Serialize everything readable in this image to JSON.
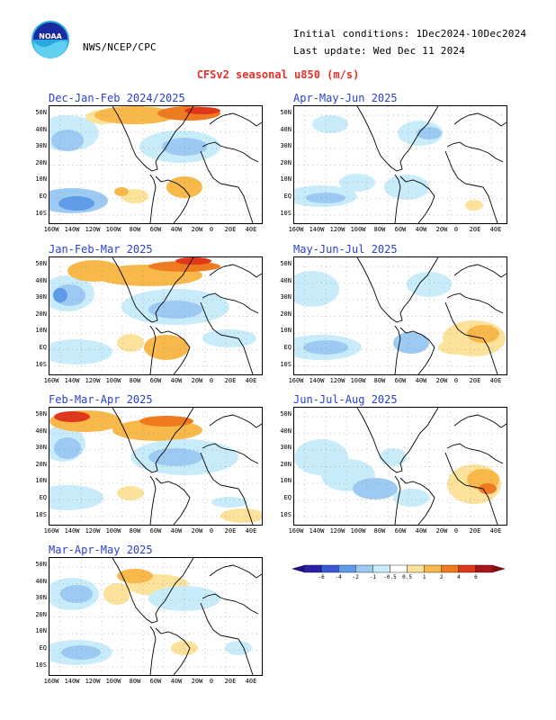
{
  "header": {
    "agency": "NWS/NCEP/CPC",
    "initial_conditions": "Initial conditions: 1Dec2024-10Dec2024",
    "last_update": "Last update: Wed Dec 11 2024",
    "title": "CFSv2 seasonal u850 (m/s)",
    "logo_text": "NOAA"
  },
  "lat_labels": [
    "50N",
    "40N",
    "30N",
    "20N",
    "10N",
    "EQ",
    "10S"
  ],
  "lon_labels": [
    "160W",
    "140W",
    "120W",
    "100W",
    "80W",
    "60W",
    "40W",
    "20W",
    "0",
    "20E",
    "40E"
  ],
  "panels": [
    {
      "title": "Dec-Jan-Feb 2024/2025"
    },
    {
      "title": "Apr-May-Jun 2025"
    },
    {
      "title": "Jan-Feb-Mar 2025"
    },
    {
      "title": "May-Jun-Jul 2025"
    },
    {
      "title": "Feb-Mar-Apr 2025"
    },
    {
      "title": "Jun-Jul-Aug 2025"
    },
    {
      "title": "Mar-Apr-May 2025"
    }
  ],
  "colorbar": {
    "labels": [
      "-6",
      "-4",
      "-2",
      "-1",
      "-0.5",
      "0.5",
      "1",
      "2",
      "4",
      "6"
    ],
    "colors": [
      "#2a20a8",
      "#3a5ad8",
      "#5f9be8",
      "#9ccaf2",
      "#c8ecfa",
      "#ffffff",
      "#fde29b",
      "#f8b84a",
      "#f07a1e",
      "#e0361a",
      "#a8141a"
    ]
  }
}
